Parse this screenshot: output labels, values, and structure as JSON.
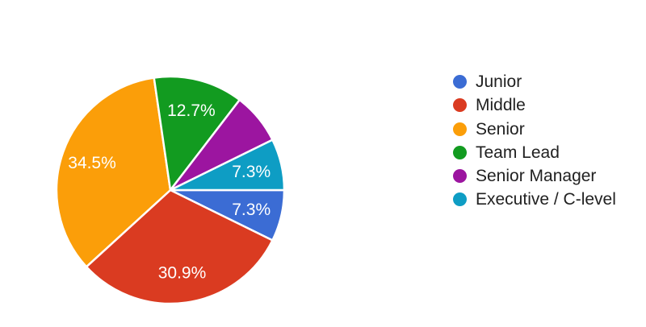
{
  "chart_data": {
    "type": "pie",
    "title": "",
    "categories": [
      "Junior",
      "Middle",
      "Senior",
      "Team Lead",
      "Senior Manager",
      "Executive / C-level"
    ],
    "values": [
      7.3,
      30.9,
      34.5,
      12.7,
      7.3,
      7.3
    ],
    "value_unit": "percent",
    "slice_labels": [
      "7.3%",
      "30.9%",
      "34.5%",
      "12.7%",
      "",
      "7.3%"
    ],
    "colors": [
      "#3B6CD4",
      "#DA3B21",
      "#FB9E09",
      "#129B20",
      "#9C15A0",
      "#0E9DC4"
    ],
    "slice_label_color": "#FFFFFF",
    "legend_position": "right",
    "legend_text_color": "#212121",
    "background_color": "#FFFFFF",
    "start_angle": "3-oclock-clockwise"
  }
}
